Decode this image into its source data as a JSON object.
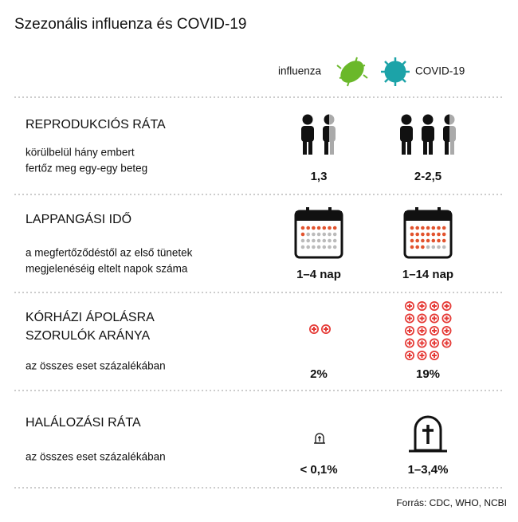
{
  "header": {
    "title": "Szezonális influenza és COVID-19"
  },
  "columns": [
    "influenza",
    "COVID-19"
  ],
  "rows": [
    {
      "title": [
        "REPRODUKCIÓS RÁTA"
      ],
      "description": [
        "körülbelül hány embert",
        "fertőz meg egy-egy beteg"
      ],
      "values": [
        "1,3",
        "2-2,5"
      ]
    },
    {
      "title": [
        "LAPPANGÁSI IDŐ"
      ],
      "description": [
        "a megfertőződéstől az első tünetek",
        "megjelenéséig eltelt napok száma"
      ],
      "values": [
        "1–4 nap",
        "1–14 nap"
      ]
    },
    {
      "title": [
        "KÓRHÁZI ÁPOLÁSRA",
        "SZORULÓK ARÁNYA"
      ],
      "description": [
        "az összes eset százalékában"
      ],
      "values": [
        "2%",
        "19%"
      ]
    },
    {
      "title": [
        "HALÁLOZÁSI RÁTA"
      ],
      "description": [
        "az összes eset százalékában"
      ],
      "values": [
        "< 0,1%",
        "1–3,4%"
      ]
    }
  ],
  "footer": {
    "source": "Forrás: CDC, WHO, NCBI"
  }
}
